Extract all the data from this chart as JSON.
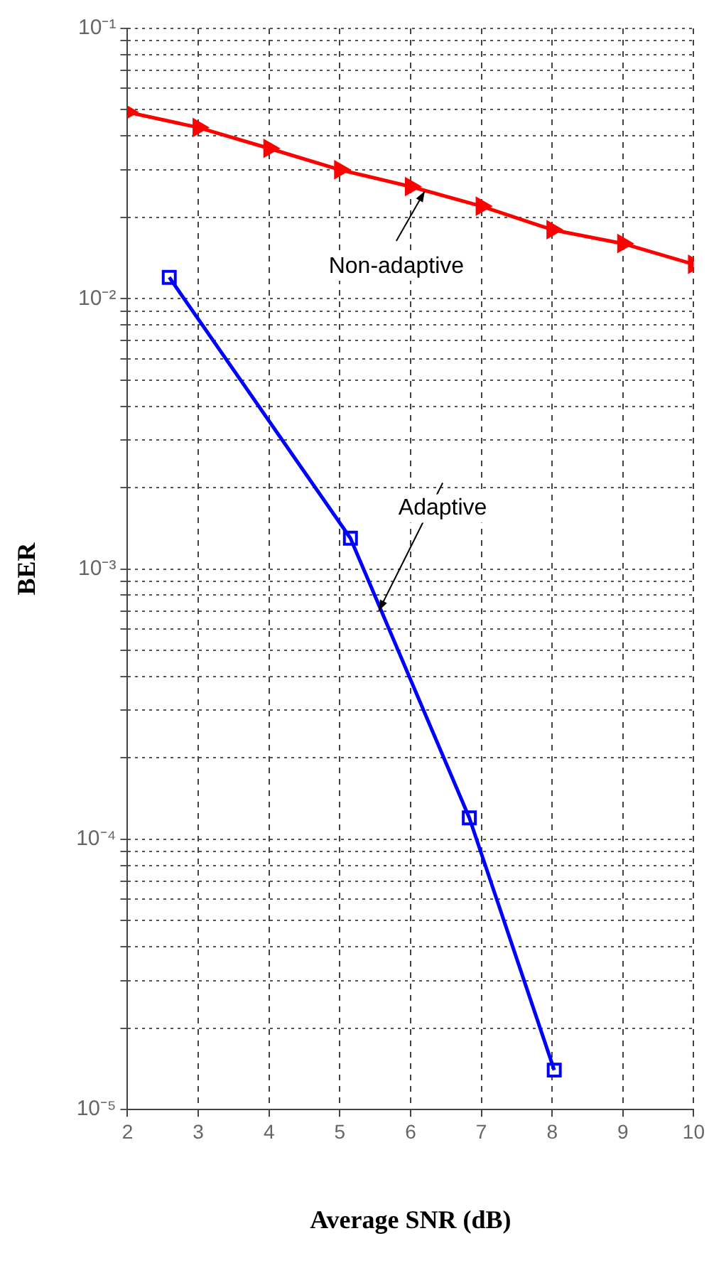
{
  "chart_data": {
    "type": "line",
    "xlabel": "Average SNR (dB)",
    "ylabel": "BER",
    "log": "y",
    "grid": true,
    "xlim": [
      2,
      10
    ],
    "xticks": [
      2,
      3,
      4,
      5,
      6,
      7,
      8,
      9,
      10
    ],
    "ylim": [
      1e-05,
      0.1
    ],
    "yticks": [
      {
        "value": 1e-05,
        "label": "10⁻⁵"
      },
      {
        "value": 2e-05,
        "label": null
      },
      {
        "value": 3e-05,
        "label": null
      },
      {
        "value": 4e-05,
        "label": null
      },
      {
        "value": 5e-05,
        "label": null
      },
      {
        "value": 6e-05,
        "label": null
      },
      {
        "value": 7e-05,
        "label": null
      },
      {
        "value": 8e-05,
        "label": null
      },
      {
        "value": 9e-05,
        "label": null
      },
      {
        "value": 0.0001,
        "label": "10⁻⁴"
      },
      {
        "value": 0.0002,
        "label": null
      },
      {
        "value": 0.0003,
        "label": null
      },
      {
        "value": 0.0004,
        "label": null
      },
      {
        "value": 0.0005,
        "label": null
      },
      {
        "value": 0.0006,
        "label": null
      },
      {
        "value": 0.0007,
        "label": null
      },
      {
        "value": 0.0008,
        "label": null
      },
      {
        "value": 0.0009,
        "label": null
      },
      {
        "value": 0.001,
        "label": "10⁻³"
      },
      {
        "value": 0.002,
        "label": null
      },
      {
        "value": 0.003,
        "label": null
      },
      {
        "value": 0.004,
        "label": null
      },
      {
        "value": 0.005,
        "label": null
      },
      {
        "value": 0.006,
        "label": null
      },
      {
        "value": 0.007,
        "label": null
      },
      {
        "value": 0.008,
        "label": null
      },
      {
        "value": 0.009,
        "label": null
      },
      {
        "value": 0.01,
        "label": "10⁻²"
      },
      {
        "value": 0.02,
        "label": null
      },
      {
        "value": 0.03,
        "label": null
      },
      {
        "value": 0.04,
        "label": null
      },
      {
        "value": 0.05,
        "label": null
      },
      {
        "value": 0.06,
        "label": null
      },
      {
        "value": 0.07,
        "label": null
      },
      {
        "value": 0.08,
        "label": null
      },
      {
        "value": 0.09,
        "label": null
      },
      {
        "value": 0.1,
        "label": "10⁻¹"
      }
    ],
    "series": [
      {
        "color": "#ff0000",
        "marker": "triangle",
        "x": [
          2,
          3,
          4,
          5,
          6,
          7,
          8,
          9,
          10
        ],
        "values": [
          0.049,
          0.043,
          0.036,
          0.03,
          0.026,
          0.022,
          0.018,
          0.016,
          0.0134
        ]
      },
      {
        "color": "#0000ff",
        "marker": "square",
        "x": [
          2.59,
          5.15,
          6.83,
          8.03
        ],
        "values": [
          0.012,
          0.0013,
          0.00012,
          1.4e-05
        ]
      }
    ],
    "annotations": [
      {
        "text": "Non-adaptive",
        "x": 6.2,
        "y": 0.025
      },
      {
        "text": "Adaptive",
        "x": 5.55,
        "y": 0.0007
      }
    ]
  }
}
